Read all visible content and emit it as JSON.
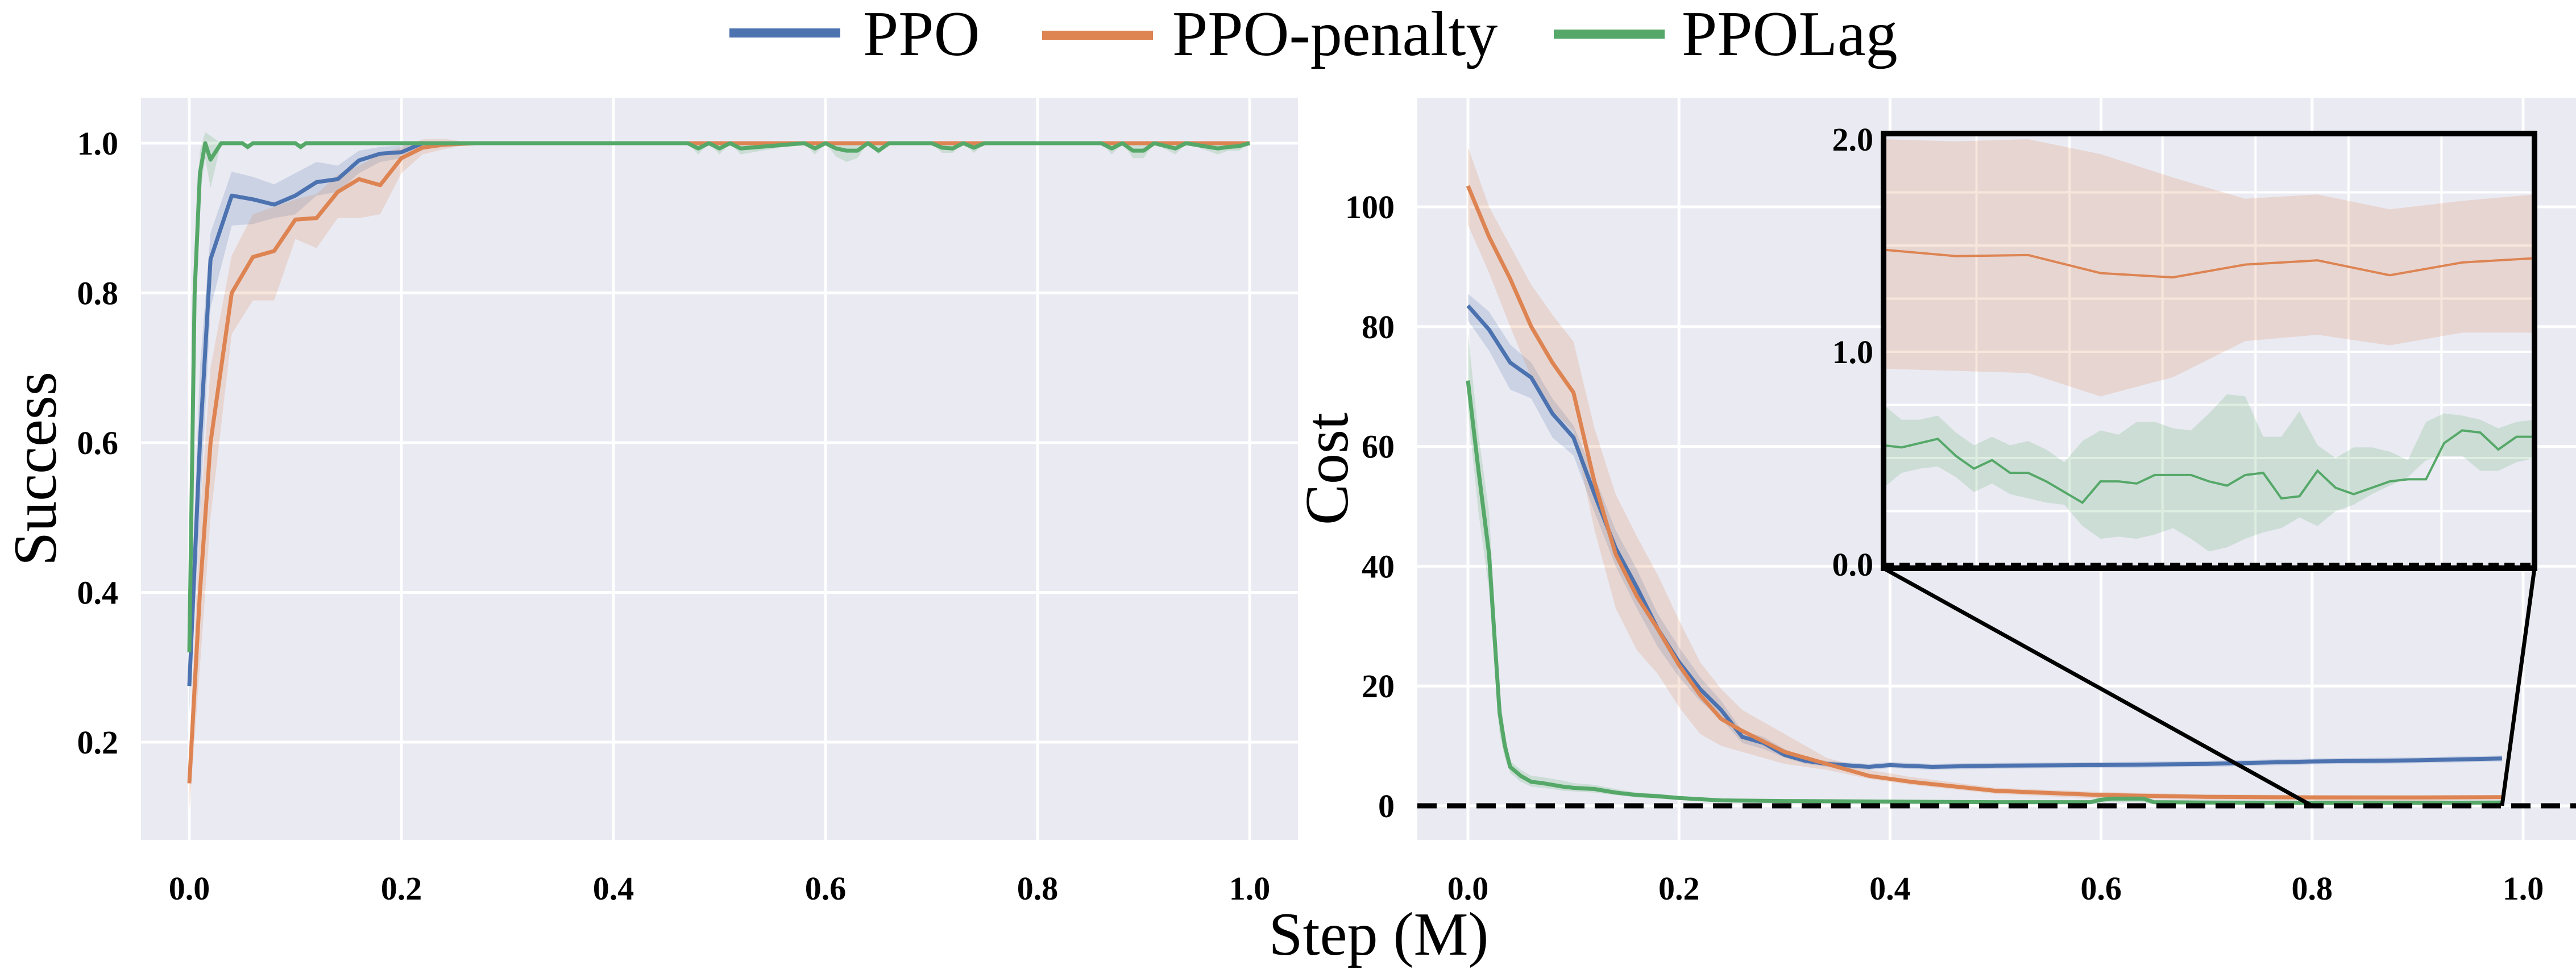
{
  "legend": {
    "placement": "top-center",
    "entries": [
      {
        "name": "PPO",
        "color": "#4c72b0"
      },
      {
        "name": "PPO-penalty",
        "color": "#dd8452"
      },
      {
        "name": "PPOLag",
        "color": "#55a868"
      }
    ]
  },
  "shared_xlabel": "Step (M)",
  "colors": {
    "axes_background": "#eaeaf2",
    "grid": "#ffffff",
    "threshold_line": "#000000"
  },
  "chart_data": [
    {
      "type": "line",
      "id": "success",
      "title": "",
      "xlabel": "Step (M)",
      "ylabel": "Success",
      "xlim": [
        -0.05,
        1.05
      ],
      "ylim": [
        0.07,
        1.05
      ],
      "xticks": [
        0.0,
        0.2,
        0.4,
        0.6,
        0.8,
        1.0
      ],
      "xtick_labels": [
        "0.0",
        "0.2",
        "0.4",
        "0.6",
        "0.8",
        "1.0"
      ],
      "yticks": [
        0.2,
        0.4,
        0.6,
        0.8,
        1.0
      ],
      "ytick_labels": [
        "0.2",
        "0.4",
        "0.6",
        "0.8",
        "1.0"
      ],
      "grid": true,
      "series": [
        {
          "name": "PPO",
          "x": [
            0.0,
            0.01,
            0.02,
            0.04,
            0.06,
            0.08,
            0.1,
            0.12,
            0.14,
            0.16,
            0.18,
            0.2,
            0.22,
            0.25,
            0.3,
            0.4,
            0.6,
            0.8,
            1.0
          ],
          "y": [
            0.275,
            0.6,
            0.845,
            0.93,
            0.925,
            0.918,
            0.93,
            0.948,
            0.952,
            0.977,
            0.986,
            0.988,
            1.0,
            1.0,
            1.0,
            1.0,
            1.0,
            1.0,
            1.0
          ],
          "lower": [
            0.24,
            0.5,
            0.78,
            0.89,
            0.892,
            0.9,
            0.905,
            0.93,
            0.935,
            0.96,
            0.975,
            0.98,
            0.995,
            1.0,
            1.0,
            1.0,
            1.0,
            1.0,
            1.0
          ],
          "upper": [
            0.31,
            0.7,
            0.88,
            0.962,
            0.955,
            0.945,
            0.96,
            0.975,
            0.97,
            0.99,
            0.995,
            0.997,
            1.0,
            1.0,
            1.0,
            1.0,
            1.0,
            1.0,
            1.0
          ]
        },
        {
          "name": "PPO-penalty",
          "x": [
            0.0,
            0.01,
            0.02,
            0.04,
            0.06,
            0.08,
            0.1,
            0.12,
            0.14,
            0.16,
            0.18,
            0.2,
            0.22,
            0.24,
            0.27,
            0.3,
            0.4,
            0.6,
            0.8,
            1.0
          ],
          "y": [
            0.145,
            0.4,
            0.6,
            0.8,
            0.848,
            0.856,
            0.898,
            0.9,
            0.935,
            0.952,
            0.944,
            0.98,
            0.994,
            0.998,
            1.0,
            1.0,
            1.0,
            1.0,
            1.0,
            1.0
          ],
          "lower": [
            0.11,
            0.3,
            0.5,
            0.745,
            0.79,
            0.79,
            0.872,
            0.86,
            0.9,
            0.9,
            0.905,
            0.96,
            0.985,
            0.992,
            1.0,
            1.0,
            1.0,
            1.0,
            1.0,
            1.0
          ],
          "upper": [
            0.18,
            0.5,
            0.7,
            0.85,
            0.905,
            0.915,
            0.925,
            0.932,
            0.958,
            0.97,
            0.985,
            0.995,
            1.005,
            1.006,
            1.0,
            1.0,
            1.0,
            1.0,
            1.0,
            1.0
          ]
        },
        {
          "name": "PPOLag",
          "x": [
            0.0,
            0.005,
            0.01,
            0.015,
            0.02,
            0.03,
            0.05,
            0.055,
            0.06,
            0.1,
            0.105,
            0.11,
            0.2,
            0.47,
            0.48,
            0.49,
            0.5,
            0.51,
            0.52,
            0.58,
            0.59,
            0.6,
            0.61,
            0.62,
            0.63,
            0.64,
            0.65,
            0.66,
            0.7,
            0.71,
            0.72,
            0.73,
            0.74,
            0.75,
            0.86,
            0.87,
            0.88,
            0.89,
            0.9,
            0.91,
            0.93,
            0.94,
            0.97,
            0.98,
            0.99,
            1.0
          ],
          "y": [
            0.32,
            0.8,
            0.96,
            1.0,
            0.978,
            1.0,
            1.0,
            0.995,
            1.0,
            1.0,
            0.995,
            1.0,
            1.0,
            1.0,
            0.993,
            1.0,
            0.993,
            1.0,
            0.993,
            1.0,
            0.993,
            1.0,
            0.993,
            0.99,
            0.99,
            1.0,
            0.99,
            1.0,
            1.0,
            0.994,
            0.993,
            1.0,
            0.994,
            1.0,
            1.0,
            0.993,
            1.0,
            0.99,
            0.99,
            1.0,
            0.993,
            1.0,
            0.993,
            0.995,
            0.996,
            1.0
          ],
          "lower": [
            0.3,
            0.75,
            0.93,
            0.98,
            0.94,
            1.0,
            1.0,
            0.99,
            1.0,
            1.0,
            0.99,
            1.0,
            1.0,
            1.0,
            0.985,
            1.0,
            0.985,
            1.0,
            0.985,
            1.0,
            0.985,
            1.0,
            0.982,
            0.975,
            0.98,
            1.0,
            0.985,
            1.0,
            1.0,
            0.987,
            0.987,
            1.0,
            0.987,
            1.0,
            1.0,
            0.985,
            1.0,
            0.98,
            0.98,
            1.0,
            0.985,
            1.0,
            0.985,
            0.99,
            0.99,
            1.0
          ],
          "upper": [
            0.34,
            0.85,
            0.99,
            1.015,
            1.01,
            1.0,
            1.0,
            1.0,
            1.0,
            1.0,
            1.0,
            1.0,
            1.0,
            1.0,
            1.0,
            1.0,
            1.0,
            1.0,
            1.0,
            1.0,
            1.0,
            1.0,
            1.0,
            1.0,
            1.0,
            1.0,
            1.0,
            1.0,
            1.0,
            1.0,
            1.0,
            1.0,
            1.0,
            1.0,
            1.0,
            1.0,
            1.0,
            1.0,
            1.0,
            1.0,
            1.0,
            1.0,
            1.0,
            1.0,
            1.0,
            1.0
          ]
        }
      ]
    },
    {
      "type": "line",
      "id": "cost",
      "title": "",
      "xlabel": "Step (M)",
      "ylabel": "Cost",
      "xlim": [
        -0.05,
        1.05
      ],
      "ylim": [
        -6,
        113
      ],
      "xticks": [
        0.0,
        0.2,
        0.4,
        0.6,
        0.8,
        1.0
      ],
      "xtick_labels": [
        "0.0",
        "0.2",
        "0.4",
        "0.6",
        "0.8",
        "1.0"
      ],
      "yticks": [
        0,
        20,
        40,
        60,
        80,
        100
      ],
      "ytick_labels": [
        "0",
        "20",
        "40",
        "60",
        "80",
        "100"
      ],
      "grid": true,
      "threshold": {
        "value": 0,
        "style": "dashed",
        "color": "#000000"
      },
      "series": [
        {
          "name": "PPO",
          "x": [
            0.0,
            0.02,
            0.04,
            0.06,
            0.08,
            0.1,
            0.12,
            0.14,
            0.16,
            0.18,
            0.2,
            0.22,
            0.24,
            0.26,
            0.28,
            0.3,
            0.32,
            0.34,
            0.38,
            0.4,
            0.44,
            0.5,
            0.6,
            0.7,
            0.8,
            0.9,
            0.98
          ],
          "y": [
            83.5,
            79.5,
            74,
            71.5,
            65.5,
            61.5,
            52,
            43,
            36.5,
            29.5,
            24,
            19.5,
            16,
            11.5,
            10.5,
            8.5,
            7.5,
            7,
            6.5,
            6.8,
            6.5,
            6.7,
            6.8,
            7.0,
            7.4,
            7.6,
            7.9
          ],
          "lower": [
            81,
            76,
            69.5,
            68,
            61.5,
            58.5,
            49,
            40,
            33,
            26.5,
            21.5,
            17.5,
            14.5,
            10.5,
            9.5,
            8,
            7,
            6.5,
            6,
            6.3,
            6,
            6.2,
            6.3,
            6.5,
            6.9,
            7.1,
            7.4
          ],
          "upper": [
            85.5,
            82.5,
            77,
            74,
            68,
            63.5,
            55,
            46,
            39.5,
            32,
            26.5,
            21.5,
            17.5,
            12.5,
            11.5,
            9.5,
            8,
            7.5,
            7,
            7.3,
            7,
            7.2,
            7.3,
            7.5,
            7.9,
            8.1,
            8.4
          ]
        },
        {
          "name": "PPO-penalty",
          "x": [
            0.0,
            0.02,
            0.04,
            0.06,
            0.08,
            0.1,
            0.12,
            0.14,
            0.16,
            0.18,
            0.2,
            0.22,
            0.24,
            0.26,
            0.3,
            0.34,
            0.38,
            0.42,
            0.5,
            0.6,
            0.7,
            0.8,
            0.9,
            0.98
          ],
          "y": [
            103.5,
            95,
            88,
            80,
            74,
            69,
            54,
            42,
            35,
            29.5,
            23.5,
            18.5,
            14.5,
            12.5,
            9,
            7,
            5,
            4,
            2.5,
            1.8,
            1.5,
            1.4,
            1.4,
            1.45
          ],
          "lower": [
            97,
            89,
            80,
            71.5,
            66,
            62.5,
            46,
            33,
            26,
            22,
            16.5,
            12,
            10,
            9,
            7,
            6,
            4.5,
            3.5,
            2,
            1.2,
            1.0,
            0.9,
            0.8,
            1.1
          ],
          "upper": [
            110,
            100,
            93.5,
            87,
            82,
            77.5,
            63,
            52,
            45,
            38.5,
            31,
            24,
            19.5,
            16,
            12,
            8,
            6,
            4.8,
            3,
            2.3,
            1.9,
            1.8,
            1.7,
            1.75
          ]
        },
        {
          "name": "PPOLag",
          "x": [
            0.0,
            0.01,
            0.02,
            0.03,
            0.035,
            0.04,
            0.05,
            0.06,
            0.07,
            0.08,
            0.09,
            0.1,
            0.12,
            0.14,
            0.16,
            0.18,
            0.2,
            0.22,
            0.24,
            0.3,
            0.4,
            0.5,
            0.59,
            0.6,
            0.61,
            0.64,
            0.65,
            0.7,
            0.8,
            0.9,
            0.98
          ],
          "y": [
            71,
            56,
            42,
            15.5,
            10,
            6.5,
            5,
            4,
            3.8,
            3.5,
            3.2,
            3,
            2.8,
            2.2,
            1.8,
            1.6,
            1.3,
            1.1,
            0.9,
            0.8,
            0.7,
            0.6,
            0.6,
            1.0,
            1.2,
            1.2,
            0.6,
            0.55,
            0.5,
            0.5,
            0.55
          ],
          "lower": [
            66,
            49,
            36,
            12,
            8,
            5.5,
            4,
            3.2,
            3,
            2.8,
            2.5,
            2.4,
            2.2,
            1.8,
            1.4,
            1.2,
            1.0,
            0.8,
            0.6,
            0.5,
            0.4,
            0.3,
            0.3,
            0.5,
            0.6,
            0.6,
            0.3,
            0.2,
            0.2,
            0.2,
            0.3
          ],
          "upper": [
            79,
            62,
            49,
            19,
            12,
            7.5,
            6,
            5,
            4.8,
            4.5,
            4.2,
            3.8,
            3.5,
            2.8,
            2.2,
            2.0,
            1.6,
            1.4,
            1.2,
            1.1,
            1.0,
            0.9,
            0.9,
            1.6,
            1.8,
            1.8,
            0.9,
            0.8,
            0.8,
            0.8,
            0.8
          ]
        }
      ]
    },
    {
      "type": "line",
      "id": "cost-inset",
      "title": "",
      "zoom_region": {
        "xlim": [
          0.8,
          0.98
        ],
        "ylim": [
          0.0,
          2.0
        ]
      },
      "yticks": [
        0.0,
        1.0,
        2.0
      ],
      "ytick_labels": [
        "0.0",
        "1.0",
        "2.0"
      ],
      "grid": true,
      "threshold": {
        "value": 0,
        "style": "dashed",
        "color": "#000000"
      },
      "series": [
        {
          "name": "PPO-penalty",
          "x": [
            0.8,
            0.82,
            0.84,
            0.86,
            0.88,
            0.9,
            0.92,
            0.94,
            0.96,
            0.98
          ],
          "y": [
            1.48,
            1.45,
            1.455,
            1.37,
            1.35,
            1.41,
            1.43,
            1.36,
            1.42,
            1.44
          ],
          "lower": [
            0.92,
            0.91,
            0.9,
            0.79,
            0.88,
            1.05,
            1.08,
            1.03,
            1.09,
            1.09
          ],
          "upper": [
            2.02,
            1.99,
            2.02,
            1.93,
            1.82,
            1.72,
            1.74,
            1.67,
            1.71,
            1.74
          ]
        },
        {
          "name": "PPOLag",
          "x": [
            0.8,
            0.805,
            0.81,
            0.815,
            0.82,
            0.825,
            0.83,
            0.835,
            0.84,
            0.845,
            0.85,
            0.855,
            0.86,
            0.865,
            0.87,
            0.875,
            0.88,
            0.885,
            0.89,
            0.895,
            0.9,
            0.905,
            0.91,
            0.915,
            0.92,
            0.925,
            0.93,
            0.935,
            0.94,
            0.945,
            0.95,
            0.955,
            0.96,
            0.965,
            0.97,
            0.975,
            0.98
          ],
          "y": [
            0.56,
            0.55,
            0.57,
            0.59,
            0.51,
            0.45,
            0.49,
            0.43,
            0.43,
            0.39,
            0.34,
            0.29,
            0.39,
            0.39,
            0.38,
            0.42,
            0.42,
            0.42,
            0.39,
            0.37,
            0.42,
            0.43,
            0.31,
            0.32,
            0.44,
            0.36,
            0.33,
            0.36,
            0.39,
            0.4,
            0.4,
            0.57,
            0.63,
            0.62,
            0.54,
            0.6,
            0.6
          ],
          "lower": [
            0.36,
            0.43,
            0.45,
            0.46,
            0.41,
            0.34,
            0.38,
            0.33,
            0.31,
            0.29,
            0.28,
            0.18,
            0.12,
            0.13,
            0.12,
            0.14,
            0.17,
            0.12,
            0.06,
            0.08,
            0.12,
            0.15,
            0.17,
            0.22,
            0.18,
            0.25,
            0.28,
            0.33,
            0.37,
            0.41,
            0.49,
            0.51,
            0.51,
            0.44,
            0.44,
            0.48,
            0.5
          ],
          "upper": [
            0.75,
            0.68,
            0.68,
            0.7,
            0.62,
            0.56,
            0.6,
            0.56,
            0.58,
            0.54,
            0.48,
            0.58,
            0.63,
            0.61,
            0.67,
            0.67,
            0.64,
            0.63,
            0.71,
            0.8,
            0.79,
            0.6,
            0.6,
            0.72,
            0.56,
            0.5,
            0.55,
            0.55,
            0.53,
            0.49,
            0.67,
            0.71,
            0.7,
            0.68,
            0.64,
            0.67,
            0.68
          ]
        }
      ]
    }
  ]
}
